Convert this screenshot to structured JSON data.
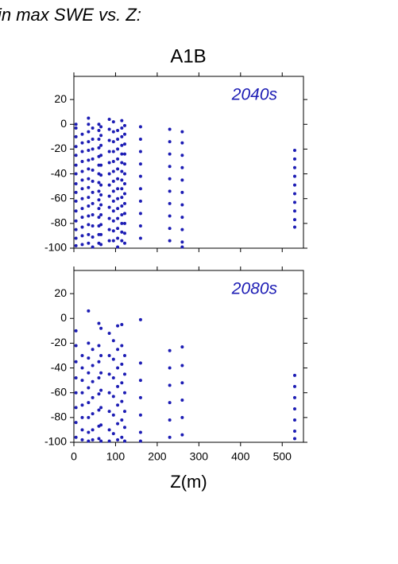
{
  "header": "in max SWE vs. Z:",
  "chart_data": [
    {
      "type": "scatter",
      "title": "A1B",
      "annotation": "2040s",
      "color": "#1c1cb4",
      "xlim": [
        0,
        551
      ],
      "ylim": [
        -100,
        38.7
      ],
      "xticks": [
        0,
        100,
        200,
        300,
        400,
        500
      ],
      "show_xtick_labels": false,
      "yticks": [
        -100,
        -80,
        -60,
        -40,
        -20,
        0,
        20
      ],
      "x": [
        5,
        5,
        5,
        5,
        5,
        5,
        5,
        5,
        5,
        5,
        5,
        5,
        5,
        5,
        5,
        20,
        20,
        20,
        20,
        20,
        20,
        20,
        20,
        20,
        20,
        20,
        20,
        20,
        35,
        35,
        35,
        35,
        35,
        35,
        35,
        35,
        35,
        35,
        35,
        35,
        35,
        35,
        35,
        45,
        45,
        45,
        45,
        45,
        45,
        45,
        45,
        45,
        45,
        45,
        45,
        60,
        60,
        60,
        60,
        60,
        60,
        60,
        60,
        60,
        60,
        60,
        60,
        60,
        60,
        60,
        65,
        65,
        65,
        65,
        65,
        65,
        65,
        65,
        65,
        65,
        65,
        65,
        65,
        85,
        85,
        85,
        85,
        85,
        85,
        85,
        85,
        85,
        85,
        85,
        85,
        95,
        95,
        95,
        95,
        95,
        95,
        95,
        95,
        95,
        95,
        95,
        95,
        95,
        105,
        105,
        105,
        105,
        105,
        105,
        105,
        105,
        105,
        105,
        105,
        105,
        105,
        115,
        115,
        115,
        115,
        115,
        115,
        115,
        115,
        115,
        115,
        115,
        115,
        115,
        115,
        115,
        122,
        122,
        122,
        122,
        122,
        122,
        122,
        122,
        122,
        122,
        122,
        122,
        122,
        160,
        160,
        160,
        160,
        160,
        160,
        160,
        160,
        160,
        160,
        230,
        230,
        230,
        230,
        230,
        230,
        230,
        230,
        230,
        230,
        260,
        260,
        260,
        260,
        260,
        260,
        260,
        260,
        260,
        260,
        260,
        530,
        530,
        530,
        530,
        530,
        530,
        530,
        530,
        530,
        530
      ],
      "y": [
        0,
        -3,
        -10,
        -18,
        -25,
        -33,
        -40,
        -48,
        -55,
        -62,
        -70,
        -78,
        -85,
        -92,
        -98,
        -8,
        -15,
        -22,
        -30,
        -38,
        -45,
        -52,
        -60,
        -68,
        -75,
        -83,
        -90,
        -97,
        5,
        0,
        -6,
        -14,
        -21,
        -29,
        -36,
        -44,
        -51,
        -59,
        -66,
        -74,
        -81,
        -89,
        -96,
        -3,
        -12,
        -20,
        -28,
        -37,
        -46,
        -55,
        -64,
        -73,
        -82,
        -91,
        -99,
        0,
        -5,
        -12,
        -19,
        -26,
        -33,
        -40,
        -47,
        -54,
        -61,
        -68,
        -75,
        -82,
        -89,
        -96,
        -2,
        -9,
        -17,
        -25,
        -33,
        -41,
        -49,
        -57,
        -65,
        -73,
        -81,
        -89,
        -97,
        4,
        -4,
        -13,
        -22,
        -31,
        -40,
        -49,
        -58,
        -67,
        -76,
        -85,
        -94,
        2,
        -6,
        -14,
        -22,
        -30,
        -38,
        -46,
        -54,
        -62,
        -70,
        -78,
        -86,
        -94,
        -5,
        -12,
        -20,
        -28,
        -36,
        -44,
        -52,
        -60,
        -68,
        -76,
        -84,
        -92,
        -99,
        3,
        -3,
        -10,
        -17,
        -24,
        -31,
        -38,
        -45,
        -52,
        -59,
        -66,
        -73,
        -80,
        -87,
        -94,
        -1,
        -8,
        -16,
        -24,
        -32,
        -40,
        -48,
        -56,
        -64,
        -72,
        -80,
        -88,
        -96,
        -2,
        -12,
        -22,
        -32,
        -42,
        -52,
        -62,
        -72,
        -82,
        -92,
        -4,
        -14,
        -24,
        -34,
        -44,
        -54,
        -64,
        -74,
        -84,
        -94,
        -6,
        -15,
        -25,
        -35,
        -45,
        -55,
        -65,
        -75,
        -85,
        -95,
        -99,
        -21,
        -28,
        -35,
        -42,
        -49,
        -56,
        -63,
        -70,
        -77,
        -83
      ]
    },
    {
      "type": "scatter",
      "annotation": "2080s",
      "xlabel": "Z(m)",
      "color": "#1c1cb4",
      "xlim": [
        0,
        551
      ],
      "ylim": [
        -100,
        38.7
      ],
      "xticks": [
        0,
        100,
        200,
        300,
        400,
        500
      ],
      "show_xtick_labels": true,
      "yticks": [
        -100,
        -80,
        -60,
        -40,
        -20,
        0,
        20
      ],
      "x": [
        5,
        5,
        5,
        5,
        5,
        5,
        5,
        5,
        20,
        20,
        20,
        20,
        20,
        20,
        20,
        20,
        35,
        35,
        35,
        35,
        35,
        35,
        35,
        35,
        35,
        45,
        45,
        45,
        45,
        45,
        45,
        45,
        60,
        60,
        60,
        60,
        60,
        60,
        60,
        60,
        65,
        65,
        65,
        65,
        65,
        65,
        65,
        85,
        85,
        85,
        85,
        85,
        85,
        85,
        95,
        95,
        95,
        95,
        95,
        95,
        105,
        105,
        105,
        105,
        105,
        105,
        105,
        115,
        115,
        115,
        115,
        115,
        115,
        115,
        122,
        122,
        122,
        122,
        122,
        122,
        160,
        160,
        160,
        160,
        160,
        160,
        160,
        230,
        230,
        230,
        230,
        230,
        230,
        260,
        260,
        260,
        260,
        260,
        260,
        530,
        530,
        530,
        530,
        530,
        530,
        530
      ],
      "y": [
        -10,
        -22,
        -35,
        -48,
        -60,
        -72,
        -84,
        -96,
        -30,
        -40,
        -50,
        -60,
        -70,
        -80,
        -90,
        -98,
        6,
        -20,
        -32,
        -44,
        -56,
        -68,
        -80,
        -92,
        -99,
        -25,
        -38,
        -51,
        -64,
        -77,
        -90,
        -98,
        -4,
        -22,
        -35,
        -48,
        -61,
        -74,
        -87,
        -97,
        -8,
        -30,
        -44,
        -58,
        -72,
        -86,
        -99,
        -12,
        -30,
        -45,
        -60,
        -75,
        -90,
        -99,
        -18,
        -33,
        -48,
        -63,
        -78,
        -93,
        -6,
        -25,
        -40,
        -55,
        -70,
        -85,
        -98,
        -5,
        -22,
        -37,
        -52,
        -67,
        -82,
        -96,
        -30,
        -45,
        -60,
        -75,
        -88,
        -99,
        -1,
        -36,
        -50,
        -64,
        -78,
        -92,
        -99,
        -26,
        -40,
        -54,
        -68,
        -82,
        -96,
        -23,
        -38,
        -52,
        -66,
        -80,
        -94,
        -46,
        -55,
        -64,
        -73,
        -82,
        -91,
        -97
      ]
    }
  ]
}
